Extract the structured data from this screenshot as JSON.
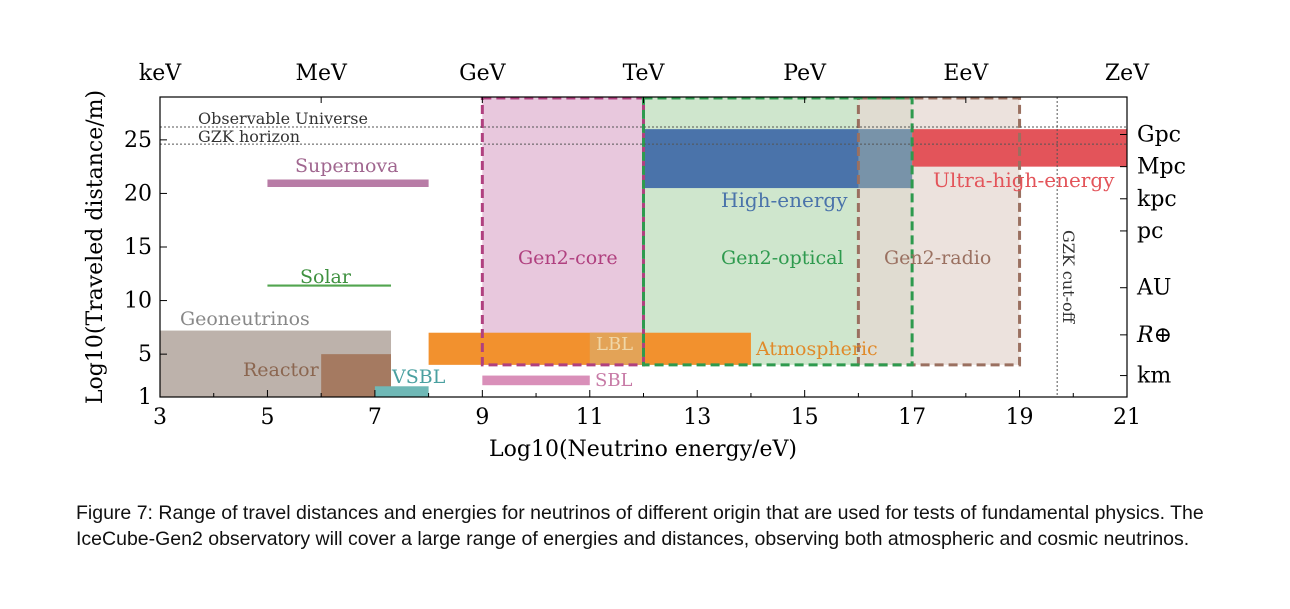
{
  "chart_data": {
    "type": "range-rectangles",
    "xlabel": "Log10(Neutrino energy/eV)",
    "ylabel": "Log10(Traveled distance/m)",
    "xlim": [
      3,
      21
    ],
    "ylim": [
      1,
      29
    ],
    "x_ticks": [
      "3",
      "5",
      "7",
      "9",
      "11",
      "13",
      "15",
      "17",
      "19",
      "21"
    ],
    "y_ticks": [
      "1",
      "5",
      "10",
      "15",
      "20",
      "25"
    ],
    "top_axis": [
      {
        "label": "keV",
        "x": 3
      },
      {
        "label": "MeV",
        "x": 6
      },
      {
        "label": "GeV",
        "x": 9
      },
      {
        "label": "TeV",
        "x": 12
      },
      {
        "label": "PeV",
        "x": 15
      },
      {
        "label": "EeV",
        "x": 18
      },
      {
        "label": "ZeV",
        "x": 21
      }
    ],
    "right_axis": [
      {
        "label": "Gpc",
        "y": 25.5
      },
      {
        "label": "Mpc",
        "y": 22.5
      },
      {
        "label": "kpc",
        "y": 19.5
      },
      {
        "label": "pc",
        "y": 16.5
      },
      {
        "label": "AU",
        "y": 11.2
      },
      {
        "label": "R⊕",
        "y": 6.8
      },
      {
        "label": "km",
        "y": 3
      }
    ],
    "reference_lines": [
      {
        "label": "Observable Universe",
        "y": 26.2
      },
      {
        "label": "GZK horizon",
        "y": 24.6
      }
    ],
    "vertical_line": {
      "label": "GZK cut-off",
      "x": 19.7
    },
    "regions": [
      {
        "label": "Geoneutrinos",
        "x": [
          3,
          7.3
        ],
        "y": [
          1,
          7.2
        ],
        "color": "#bdb2ab"
      },
      {
        "label": "Reactor",
        "x": [
          6,
          7.3
        ],
        "y": [
          1,
          5
        ],
        "color": "#a57a61"
      },
      {
        "label": "VSBL",
        "x": [
          7,
          8
        ],
        "y": [
          1,
          2
        ],
        "color": "#6fb8b6"
      },
      {
        "label": "Solar",
        "x": [
          5,
          7.3
        ],
        "y": [
          11.3,
          11.5
        ],
        "color": "#52a54f"
      },
      {
        "label": "Supernova",
        "x": [
          5,
          8
        ],
        "y": [
          20.6,
          21.3
        ],
        "color": "#b87ca6"
      },
      {
        "label": "Atmospheric",
        "x": [
          8,
          14
        ],
        "y": [
          4,
          7
        ],
        "color": "#f2912e"
      },
      {
        "label": "LBL",
        "x": [
          11,
          12
        ],
        "y": [
          4,
          7
        ],
        "color": "#e0a65e"
      },
      {
        "label": "SBL",
        "x": [
          9,
          11
        ],
        "y": [
          2.1,
          3
        ],
        "color": "#d98fb9"
      },
      {
        "label": "High-energy",
        "x": [
          12,
          17
        ],
        "y": [
          20.5,
          26
        ],
        "color": "#4a73aa"
      },
      {
        "label": "Ultra-high-energy",
        "x": [
          17,
          21
        ],
        "y": [
          22.5,
          26
        ],
        "color": "#e3545a"
      }
    ],
    "detectors": [
      {
        "label": "Gen2-core",
        "x": [
          9,
          12
        ],
        "y": [
          4,
          29
        ],
        "fill": "#e8c8dd",
        "stroke": "#b0407f"
      },
      {
        "label": "Gen2-optical",
        "x": [
          12,
          17
        ],
        "y": [
          4,
          29
        ],
        "fill": "#cfe6cd",
        "stroke": "#2e9a4e"
      },
      {
        "label": "Gen2-radio",
        "x": [
          16,
          19
        ],
        "y": [
          4,
          29
        ],
        "fill": "#e5d8d2",
        "stroke": "#9a7060"
      }
    ]
  },
  "caption": "Figure 7: Range of travel distances and energies for neutrinos of different origin that are used for tests of fundamental physics. The IceCube-Gen2 observatory will cover a large range of energies and distances, observing both atmospheric and cosmic neutrinos."
}
